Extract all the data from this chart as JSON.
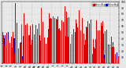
{
  "background_color": "#e8e8e8",
  "bar_color_red": "#dd0000",
  "bar_color_blue": "#0000cc",
  "legend_label_red": "Above Avg",
  "legend_label_blue": "Below Avg",
  "num_days": 365,
  "seed": 17,
  "ylim": [
    0,
    100
  ],
  "ytick_vals": [
    10,
    20,
    30,
    40,
    50,
    60,
    70,
    80,
    90,
    100
  ],
  "num_vgrid_lines": 13,
  "grid_color": "#aaaaaa",
  "fig_width": 1.6,
  "fig_height": 0.87,
  "dpi": 100,
  "bar_width": 0.7
}
